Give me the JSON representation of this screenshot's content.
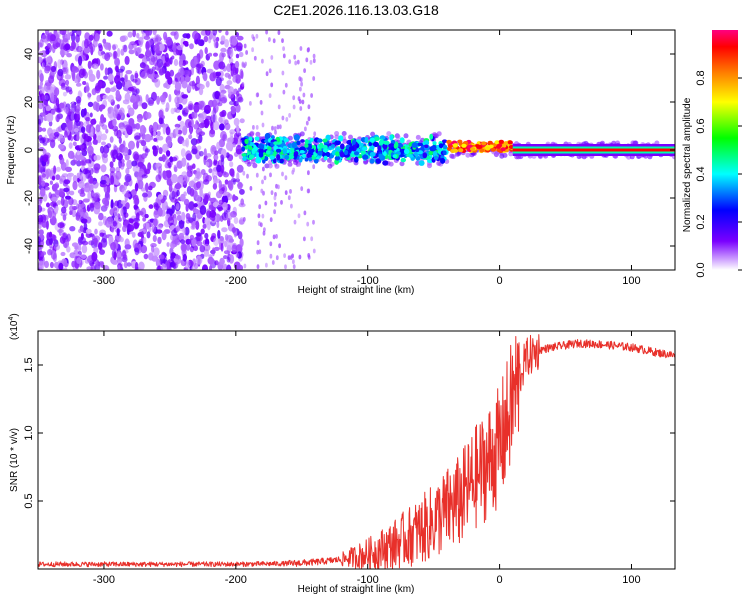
{
  "title": "C2E1.2026.116.13.03.G18",
  "chart_data": [
    {
      "type": "heatmap",
      "xlabel": "Height of straight line (km)",
      "ylabel": "Frequency (Hz)",
      "xlim": [
        -350,
        133
      ],
      "ylim": [
        -50,
        50
      ],
      "xticks": [
        -300,
        -200,
        -100,
        0,
        100
      ],
      "yticks": [
        -40,
        -20,
        0,
        20,
        40
      ],
      "colorbar": {
        "label": "Normalized spectral amplitude",
        "range": [
          0,
          1
        ],
        "ticks": [
          "0.0",
          "0.2",
          "0.4",
          "0.6",
          "0.8"
        ],
        "tick_values": [
          0,
          0.2,
          0.4,
          0.6,
          0.8
        ],
        "colors": [
          "#ffffff",
          "#7a00ff",
          "#0000ff",
          "#00ffff",
          "#00ff00",
          "#ffff00",
          "#ff8000",
          "#ff0000",
          "#ff0080"
        ]
      },
      "regions": [
        {
          "x": [
            -350,
            -195
          ],
          "description": "diffuse scattered noise",
          "amplitude_range": [
            0.0,
            0.15
          ]
        },
        {
          "x": [
            -195,
            -40
          ],
          "freq_center": 0,
          "freq_spread": 6,
          "amplitude_range": [
            0.2,
            0.5
          ]
        },
        {
          "x": [
            -40,
            10
          ],
          "freq_center": 1.5,
          "freq_spread": 2,
          "amplitude_range": [
            0.7,
            1.0
          ]
        },
        {
          "x": [
            10,
            133
          ],
          "freq_center": 0,
          "freq_spread": 1,
          "amplitude_range": [
            0.9,
            1.0
          ]
        }
      ]
    },
    {
      "type": "line",
      "xlabel": "Height of straight line (km)",
      "ylabel": "SNR (10 * v/v)",
      "scale_label": "(x10",
      "scale_exp": "4",
      "scale_close": ")",
      "xlim": [
        -350,
        133
      ],
      "ylim": [
        0,
        17500
      ],
      "xticks": [
        -300,
        -200,
        -100,
        0,
        100
      ],
      "yticks": [
        5000,
        10000,
        15000
      ],
      "ytick_labels": [
        "0.5",
        "1.0",
        "1.5"
      ],
      "color": "#e8302a",
      "series": [
        {
          "name": "SNR",
          "x": [
            -350,
            -300,
            -250,
            -200,
            -160,
            -140,
            -120,
            -100,
            -80,
            -60,
            -50,
            -40,
            -30,
            -20,
            -10,
            0,
            5,
            10,
            20,
            30,
            40,
            60,
            80,
            100,
            120,
            133
          ],
          "y": [
            350,
            350,
            350,
            350,
            400,
            500,
            700,
            1100,
            1800,
            2800,
            3500,
            4300,
            5000,
            6500,
            7700,
            9000,
            10500,
            12500,
            15500,
            16100,
            16300,
            16600,
            16500,
            16300,
            15900,
            15700
          ]
        }
      ]
    }
  ]
}
